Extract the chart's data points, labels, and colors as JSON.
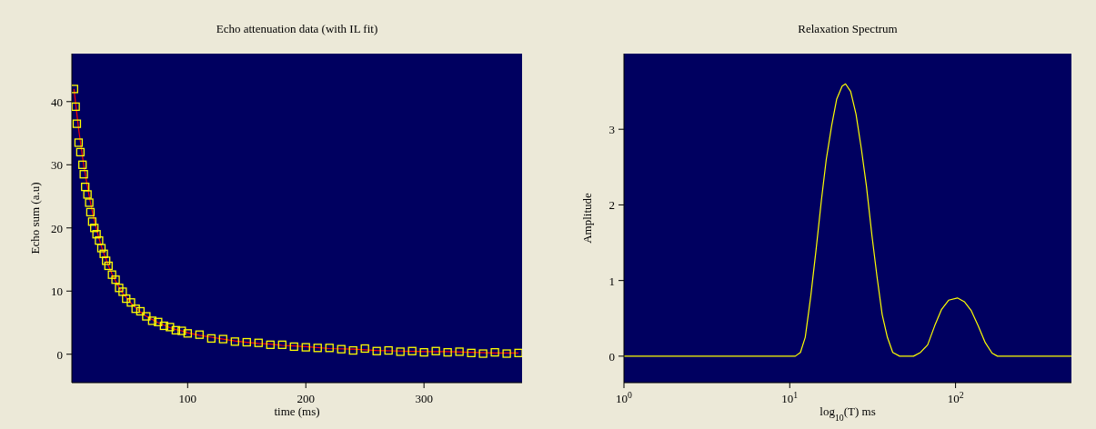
{
  "chart_data": [
    {
      "type": "scatter",
      "title": "Echo attenuation data (with IL fit)",
      "xlabel": "time (ms)",
      "ylabel": "Echo sum (a.u)",
      "xlim": [
        2,
        383
      ],
      "xticks": [
        100,
        200,
        300
      ],
      "ylim": [
        -4.5,
        47.6
      ],
      "yticks": [
        0,
        10,
        20,
        30,
        40
      ],
      "grid": false,
      "legend": false,
      "series": [
        {
          "marker": "square",
          "color": "#ffff00",
          "x": [
            3.8,
            5.2,
            6.2,
            7.7,
            9.2,
            11,
            12.1,
            13.3,
            15.2,
            16.7,
            17.7,
            19.2,
            21,
            22.9,
            25,
            27,
            29,
            31,
            33,
            36,
            39,
            42,
            45,
            48,
            52,
            56,
            60,
            65,
            70,
            75,
            80,
            85,
            90,
            95,
            100,
            110,
            120,
            130,
            140,
            150,
            160,
            170,
            180,
            190,
            200,
            210,
            220,
            230,
            240,
            250,
            260,
            270,
            280,
            290,
            300,
            310,
            320,
            330,
            340,
            350,
            360,
            370,
            380
          ],
          "values": [
            42,
            39.2,
            36.5,
            33.5,
            32,
            30,
            28.5,
            26.5,
            25.3,
            24,
            22.5,
            21,
            20,
            19,
            18,
            16.8,
            15.9,
            14.8,
            14,
            12.6,
            11.8,
            10.5,
            9.9,
            8.8,
            8.2,
            7.2,
            6.8,
            6,
            5.3,
            5.1,
            4.5,
            4.3,
            3.8,
            3.7,
            3.3,
            3.1,
            2.5,
            2.4,
            2,
            1.9,
            1.8,
            1.5,
            1.5,
            1.2,
            1.1,
            1,
            1,
            0.8,
            0.6,
            0.9,
            0.5,
            0.6,
            0.4,
            0.5,
            0.3,
            0.5,
            0.3,
            0.4,
            0.2,
            0.1,
            0.3,
            0.1,
            0.2
          ]
        },
        {
          "type": "line",
          "marker": "none",
          "color": "#ff0000",
          "x": [
            3.8,
            6,
            8,
            10,
            12,
            14,
            16,
            18,
            20,
            22,
            24,
            26,
            28,
            30,
            33,
            36,
            39,
            42,
            45,
            48,
            52,
            56,
            60,
            65,
            70,
            75,
            80,
            85,
            90,
            95,
            100,
            110,
            120,
            130,
            140,
            150,
            160,
            170,
            180,
            190,
            200,
            220,
            240,
            260,
            280,
            300,
            320,
            340,
            360,
            380
          ],
          "values": [
            42,
            38.4,
            35.3,
            32.6,
            30,
            27.8,
            25.7,
            23.8,
            22,
            20.5,
            19,
            17.7,
            16.5,
            15.5,
            14,
            12.7,
            11.6,
            10.6,
            9.7,
            9,
            8.1,
            7.4,
            6.7,
            6,
            5.5,
            5,
            4.6,
            4.2,
            3.9,
            3.7,
            3.4,
            3,
            2.7,
            2.4,
            2.1,
            1.9,
            1.7,
            1.6,
            1.4,
            1.3,
            1.2,
            0.9,
            0.8,
            0.6,
            0.5,
            0.4,
            0.4,
            0.3,
            0.2,
            0.2
          ]
        }
      ]
    },
    {
      "type": "line",
      "title": "Relaxation Spectrum",
      "xlabel": "log$_{10}$(T) ms",
      "ylabel": "Amplitude",
      "log": "x",
      "xlim": [
        1,
        500
      ],
      "xticks": [
        {
          "value": 1,
          "label": "10$^{0}$"
        },
        {
          "value": 10,
          "label": "10$^{1}$"
        },
        {
          "value": 100,
          "label": "10$^{2}$"
        }
      ],
      "ylim": [
        -0.35,
        4
      ],
      "yticks": [
        0,
        1,
        2,
        3
      ],
      "grid": false,
      "legend": false,
      "marker": "none",
      "series": [
        {
          "color": "#ffff00",
          "x": [
            1,
            10.8,
            11.6,
            12.4,
            13.4,
            14.4,
            15.5,
            16.6,
            17.9,
            19.2,
            20.7,
            21.7,
            23.3,
            25.1,
            27,
            29,
            31.3,
            33.6,
            36.1,
            38.8,
            41.8,
            46,
            55.8,
            61.5,
            67.9,
            74.8,
            82.4,
            90.8,
            102.6,
            113,
            124.5,
            137,
            151,
            166,
            179,
            500
          ],
          "values": [
            0,
            0,
            0.05,
            0.25,
            0.8,
            1.4,
            2.05,
            2.6,
            3.05,
            3.4,
            3.57,
            3.6,
            3.5,
            3.2,
            2.75,
            2.25,
            1.6,
            1.05,
            0.55,
            0.25,
            0.05,
            0,
            0,
            0.05,
            0.15,
            0.4,
            0.62,
            0.74,
            0.77,
            0.72,
            0.6,
            0.4,
            0.18,
            0.04,
            0,
            0
          ]
        }
      ]
    }
  ]
}
